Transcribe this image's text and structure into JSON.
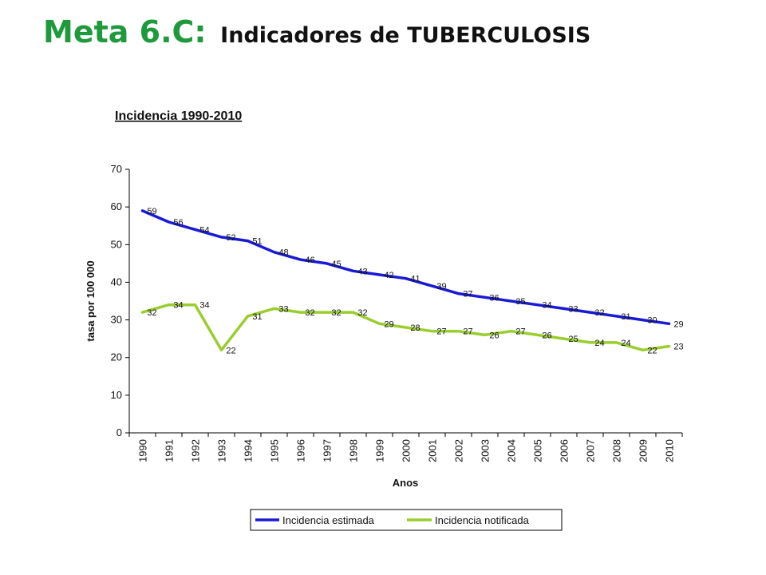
{
  "slide": {
    "title_main": "Meta 6.C:",
    "title_sub": "Indicadores de TUBERCULOSIS"
  },
  "chart_data": {
    "type": "line",
    "title": "Incidencia 1990-2010",
    "xlabel": "Anos",
    "ylabel": "tasa por 100 000",
    "ylim": [
      0,
      70
    ],
    "yticks": [
      0,
      10,
      20,
      30,
      40,
      50,
      60,
      70
    ],
    "grid": false,
    "legend_position": "bottom",
    "categories": [
      "1990",
      "1991",
      "1992",
      "1993",
      "1994",
      "1995",
      "1996",
      "1997",
      "1998",
      "1999",
      "2000",
      "2001",
      "2002",
      "2003",
      "2004",
      "2005",
      "2006",
      "2007",
      "2008",
      "2009",
      "2010"
    ],
    "series": [
      {
        "name": "Incidencia estimada",
        "color": "#1a1ad6",
        "values": [
          59,
          56,
          54,
          52,
          51,
          48,
          46,
          45,
          43,
          42,
          41,
          39,
          37,
          36,
          35,
          34,
          33,
          32,
          31,
          30,
          29
        ],
        "labels": [
          "59",
          "56",
          "54",
          "52",
          "51",
          "48",
          "46",
          "45",
          "43",
          "42",
          "41",
          "39",
          "37",
          "36",
          "35",
          "34",
          "33",
          "32",
          "31",
          "30",
          "29"
        ]
      },
      {
        "name": "Incidencia notificada",
        "color": "#9acd2e",
        "values": [
          32,
          34,
          34,
          22,
          31,
          33,
          32,
          32,
          32,
          29,
          28,
          27,
          27,
          26,
          27,
          26,
          25,
          24,
          24,
          22,
          23
        ],
        "labels": [
          "32",
          "34",
          "34",
          "22",
          "31",
          "33",
          "32",
          "32",
          "32",
          "29",
          "28",
          "27",
          "27",
          "26",
          "27",
          "26",
          "25",
          "24",
          "24",
          "22",
          "23"
        ]
      }
    ]
  }
}
